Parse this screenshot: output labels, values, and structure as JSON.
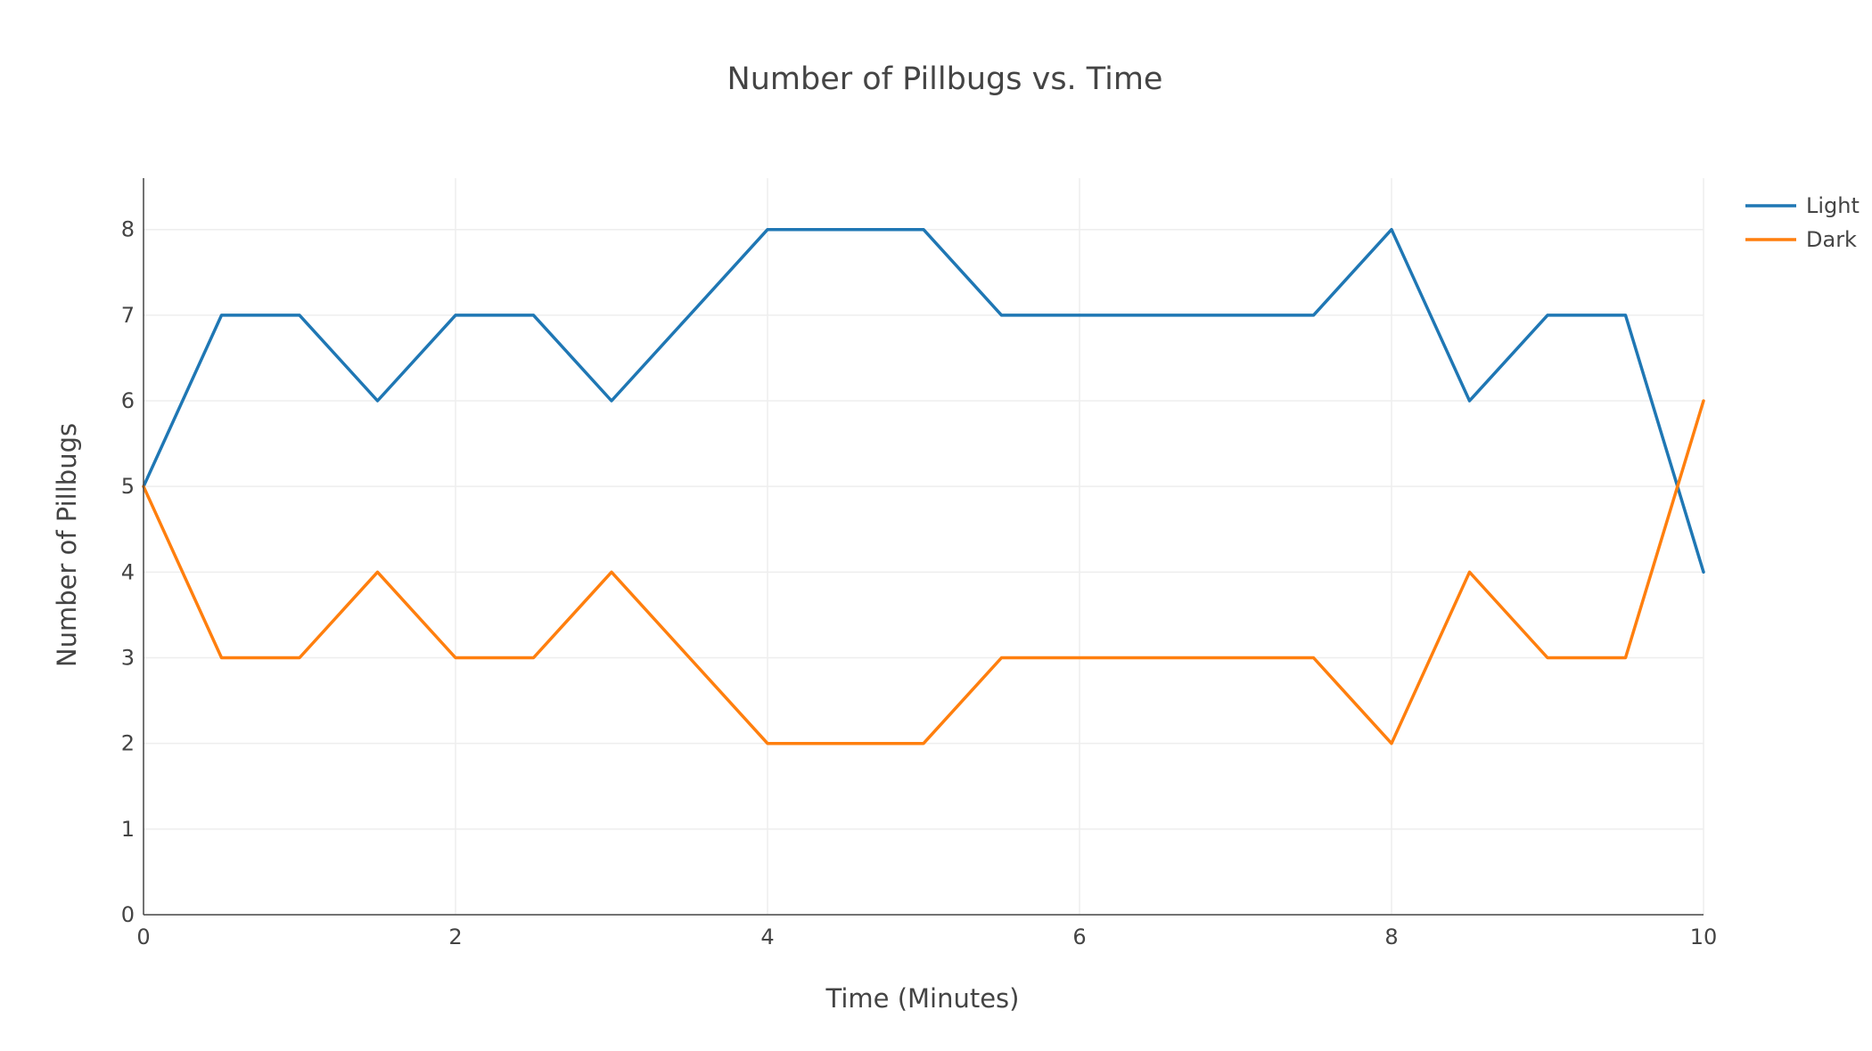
{
  "chart_data": {
    "type": "line",
    "title": "Number of Pillbugs vs. Time",
    "xlabel": "Time (Minutes)",
    "ylabel": "Number of Pillbugs",
    "xlim": [
      0,
      10
    ],
    "ylim": [
      0,
      8.6
    ],
    "x_ticks": [
      0,
      2,
      4,
      6,
      8,
      10
    ],
    "y_ticks": [
      0,
      1,
      2,
      3,
      4,
      5,
      6,
      7,
      8
    ],
    "grid": true,
    "legend_position": "top-right",
    "x": [
      0,
      0.5,
      1,
      1.5,
      2,
      2.5,
      3,
      3.5,
      4,
      4.5,
      5,
      5.5,
      6,
      6.5,
      7,
      7.5,
      8,
      8.5,
      9,
      9.5,
      10
    ],
    "series": [
      {
        "name": "Light",
        "color": "#1f77b4",
        "values": [
          5,
          7,
          7,
          6,
          7,
          7,
          6,
          7,
          8,
          8,
          8,
          7,
          7,
          7,
          7,
          7,
          8,
          6,
          7,
          7,
          4
        ]
      },
      {
        "name": "Dark",
        "color": "#ff7f0e",
        "values": [
          5,
          3,
          3,
          4,
          3,
          3,
          4,
          3,
          2,
          2,
          2,
          3,
          3,
          3,
          3,
          3,
          2,
          4,
          3,
          3,
          6
        ]
      }
    ]
  }
}
